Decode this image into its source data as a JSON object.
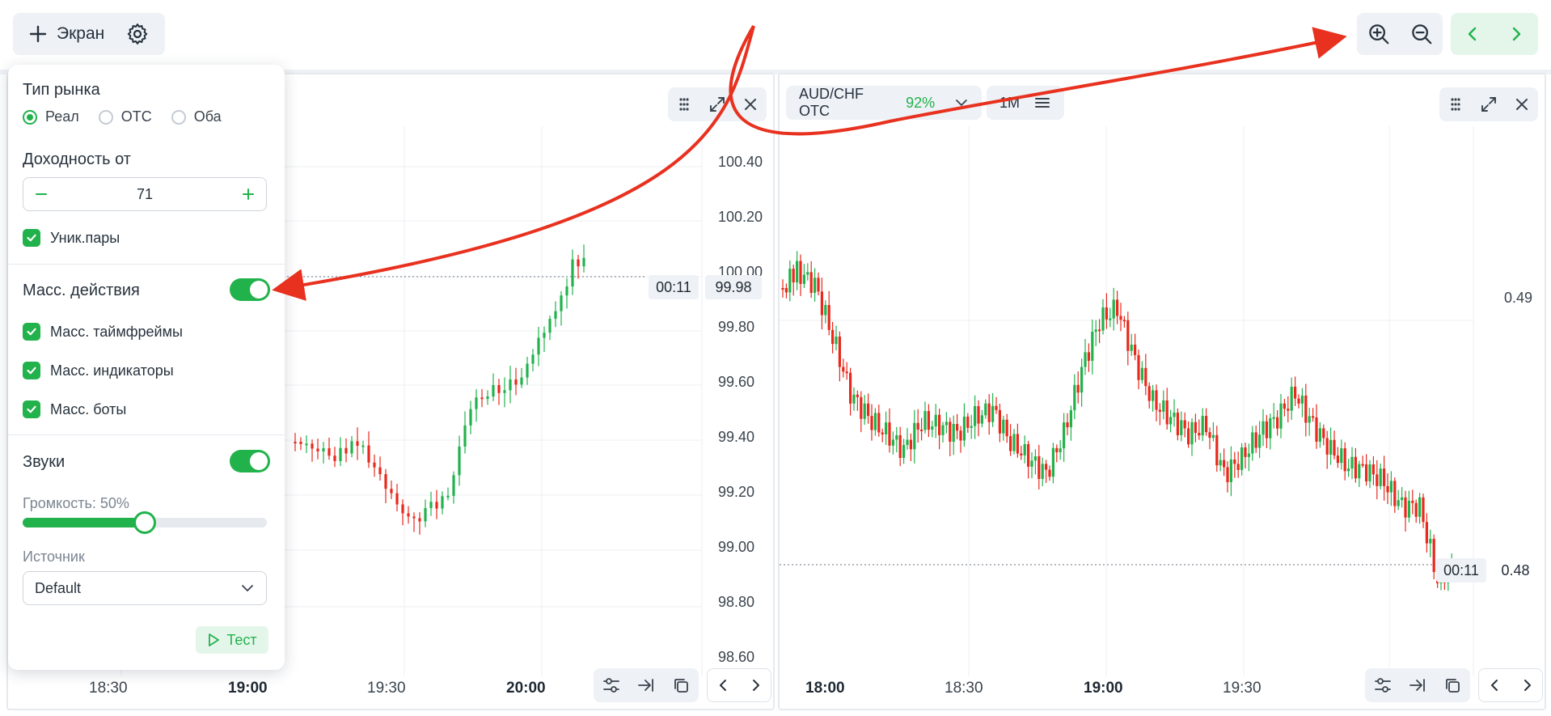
{
  "toolbar": {
    "screen_label": "Экран"
  },
  "charts": {
    "left": {
      "price_ticks": [
        "100.40",
        "100.20",
        "100.00",
        "99.80",
        "99.60",
        "99.40",
        "99.20",
        "99.00",
        "98.80",
        "98.60"
      ],
      "current_price": "99.98",
      "countdown": "00:11",
      "time_ticks": [
        "18:30",
        "19:00",
        "19:30",
        "20:00"
      ],
      "bold_times": [
        "19:00",
        "20:00"
      ]
    },
    "right": {
      "asset": "AUD/CHF OTC",
      "payout": "92%",
      "timeframe": "1M",
      "price_ticks": [
        "0.49"
      ],
      "current_price": "0.48",
      "countdown": "00:11",
      "time_ticks": [
        "18:00",
        "18:30",
        "19:00",
        "19:30"
      ],
      "bold_times": [
        "18:00",
        "19:00"
      ]
    }
  },
  "settings": {
    "market_type_title": "Тип рынка",
    "market_options": [
      "Реал",
      "OTC",
      "Оба"
    ],
    "market_selected": "Реал",
    "yield_title": "Доходность от",
    "yield_value": "71",
    "unique_pairs_label": "Уник.пары",
    "mass_actions_title": "Масс. действия",
    "mass_actions_on": true,
    "mass_timeframes_label": "Масс. таймфреймы",
    "mass_indicators_label": "Масс. индикаторы",
    "mass_bots_label": "Масс. боты",
    "sounds_title": "Звуки",
    "sounds_on": true,
    "volume_label": "Громкость: 50%",
    "volume_level": 0.5,
    "source_title": "Источник",
    "source_value": "Default",
    "test_label": "Тест"
  },
  "colors": {
    "accent": "#22b24c",
    "bear": "#e8291c",
    "arrow": "#e8311f"
  }
}
